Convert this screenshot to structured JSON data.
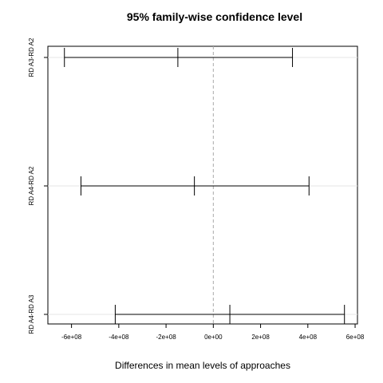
{
  "chart_data": {
    "type": "interval",
    "title": "95% family-wise confidence level",
    "xlabel": "Differences in mean levels of approaches",
    "ylabel": "",
    "xlim": [
      -700000000,
      610000000
    ],
    "x_ticks": [
      {
        "value": -600000000,
        "label": "-6e+08"
      },
      {
        "value": -400000000,
        "label": "-4e+08"
      },
      {
        "value": -200000000,
        "label": "-2e+08"
      },
      {
        "value": 0,
        "label": "0e+00"
      },
      {
        "value": 200000000,
        "label": "2e+08"
      },
      {
        "value": 400000000,
        "label": "4e+08"
      },
      {
        "value": 600000000,
        "label": "6e+08"
      }
    ],
    "reference_line": 0,
    "grid": false,
    "comparisons": [
      {
        "label": "RD A3-RD A2",
        "lwr": -630000000,
        "diff": -150000000,
        "upr": 335000000
      },
      {
        "label": "RD A4-RD A2",
        "lwr": -560000000,
        "diff": -80000000,
        "upr": 405000000
      },
      {
        "label": "RD A4-RD A3",
        "lwr": -415000000,
        "diff": 70000000,
        "upr": 555000000
      }
    ]
  }
}
